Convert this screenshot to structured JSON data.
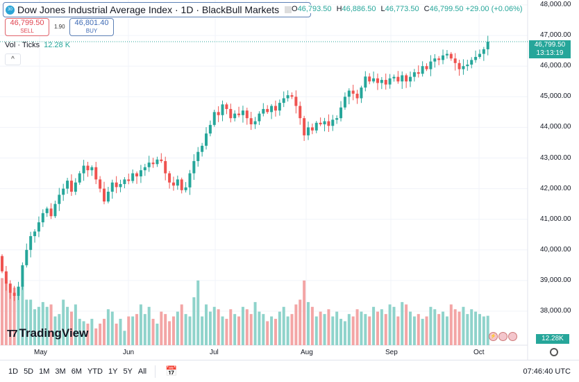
{
  "header": {
    "title": "Dow Jones Industrial Average Index · 1D · BlackBull Markets",
    "badge": "30",
    "ohlc": {
      "o_label": "O",
      "o": "46,793.50",
      "h_label": "H",
      "h": "46,886.50",
      "l_label": "L",
      "l": "46,773.50",
      "c_label": "C",
      "c": "46,799.50",
      "change": "+29.00 (+0.06%)"
    }
  },
  "trade": {
    "sell_price": "46,799.50",
    "sell_label": "SELL",
    "spread": "1.90",
    "buy_price": "46,801.40",
    "buy_label": "BUY"
  },
  "volume": {
    "label": "Vol · Ticks",
    "value": "12.28 K",
    "tag": "12.28K"
  },
  "price_axis": {
    "labels": [
      "48,000.00",
      "47,000.00",
      "46,000.00",
      "45,000.00",
      "44,000.00",
      "43,000.00",
      "42,000.00",
      "41,000.00",
      "40,000.00",
      "39,000.00",
      "38,000.00"
    ],
    "current_price": "46,799.50",
    "countdown": "13:13:19"
  },
  "time_axis": {
    "months": [
      "May",
      "Jun",
      "Jul",
      "Aug",
      "Sep",
      "Oct"
    ]
  },
  "ranges": [
    "1D",
    "5D",
    "1M",
    "3M",
    "6M",
    "YTD",
    "1Y",
    "5Y",
    "All"
  ],
  "clock": "07:46:40 UTC",
  "logo": "TradingView",
  "colors": {
    "up": "#26a69a",
    "down": "#ef5350",
    "vol_up": "#8fd3cb",
    "vol_down": "#f3a5a5"
  },
  "chart_data": {
    "type": "candlestick",
    "interval": "1D",
    "ylim": [
      37700,
      48100
    ],
    "open_first": 39800,
    "close": [
      39300,
      38900,
      38600,
      38500,
      38800,
      39500,
      40000,
      40450,
      40600,
      40900,
      41200,
      41350,
      41100,
      41500,
      41800,
      42000,
      42260,
      41900,
      42200,
      42500,
      42750,
      42600,
      42700,
      42300,
      42000,
      41580,
      41900,
      42200,
      42050,
      42150,
      42300,
      42250,
      42500,
      42400,
      42600,
      42700,
      42850,
      42800,
      42950,
      42900,
      42500,
      42200,
      42100,
      42300,
      41950,
      42040,
      42500,
      42900,
      43200,
      43400,
      43800,
      44080,
      44500,
      44400,
      44750,
      44600,
      44300,
      44450,
      44400,
      44550,
      44300,
      44100,
      44200,
      44450,
      44600,
      44500,
      44700,
      44550,
      44800,
      44950,
      45050,
      45000,
      44700,
      44300,
      43740,
      44000,
      43900,
      44150,
      44100,
      44200,
      44050,
      44250,
      44300,
      44650,
      45000,
      45200,
      45100,
      44950,
      45300,
      45660,
      45500,
      45600,
      45450,
      45550,
      45400,
      45600,
      45650,
      45500,
      45700,
      45500,
      45650,
      45800,
      45750,
      46000,
      45900,
      46150,
      46250,
      46200,
      46350,
      46400,
      46250,
      46100,
      45900,
      46000,
      46050,
      46200,
      46300,
      46400,
      46550,
      46799.5
    ],
    "volume_k": [
      28,
      26,
      22,
      24,
      21,
      25,
      19,
      19,
      15,
      16,
      18,
      16,
      17,
      12,
      13,
      19,
      16,
      14,
      17,
      11,
      10,
      9,
      11,
      7,
      9,
      11,
      15,
      14,
      9,
      11,
      6,
      12,
      12,
      13,
      17,
      13,
      16,
      11,
      9,
      14,
      13,
      10,
      12,
      14,
      17,
      13,
      12,
      20,
      27,
      12,
      17,
      14,
      16,
      15,
      12,
      11,
      15,
      13,
      12,
      16,
      15,
      13,
      18,
      14,
      13,
      10,
      12,
      11,
      14,
      16,
      12,
      13,
      17,
      19,
      27,
      18,
      16,
      12,
      14,
      13,
      15,
      12,
      14,
      11,
      10,
      13,
      12,
      15,
      14,
      13,
      12,
      16,
      14,
      15,
      13,
      17,
      16,
      12,
      18,
      17,
      14,
      12,
      13,
      11,
      12,
      16,
      15,
      13,
      14,
      12,
      17,
      15,
      14,
      16,
      13,
      15,
      14,
      13,
      12,
      12.28
    ]
  }
}
